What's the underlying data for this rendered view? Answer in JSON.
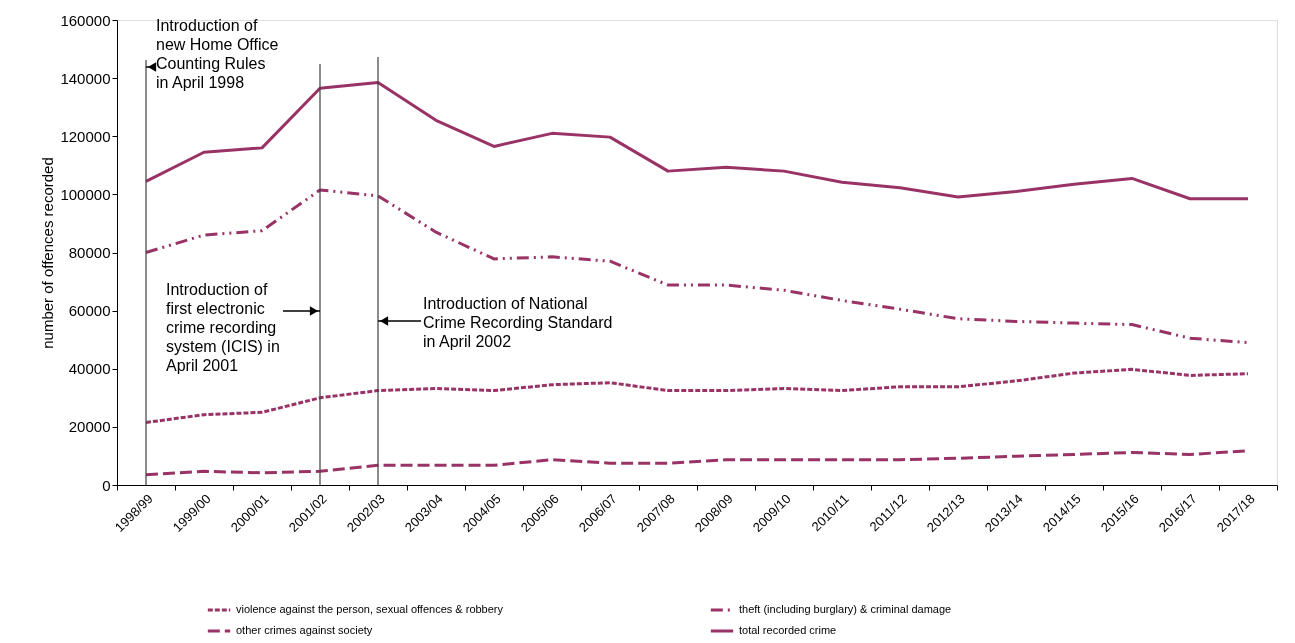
{
  "chart_data": {
    "type": "line",
    "ylabel": "number of offences recorded",
    "categories": [
      "1998/99",
      "1999/00",
      "2000/01",
      "2001/02",
      "2002/03",
      "2003/04",
      "2004/05",
      "2005/06",
      "2006/07",
      "2007/08",
      "2008/09",
      "2009/10",
      "2010/11",
      "2011/12",
      "2012/13",
      "2013/14",
      "2014/15",
      "2015/16",
      "2016/17",
      "2017/18"
    ],
    "series": [
      {
        "name": "violence against the person, sexual offences & robbery",
        "color": "#993366",
        "line_style": "dotted",
        "values": [
          21500,
          24200,
          25000,
          30000,
          32500,
          33200,
          32500,
          34500,
          35200,
          32500,
          32500,
          33200,
          32500,
          33800,
          33800,
          35800,
          38500,
          39800,
          37700,
          38300
        ]
      },
      {
        "name": "theft (including burglary) & criminal damage",
        "color": "#993366",
        "line_style": "dashdot",
        "values": [
          80000,
          86000,
          87500,
          101500,
          99500,
          87000,
          77800,
          78500,
          77000,
          68800,
          68800,
          67000,
          63500,
          60500,
          57200,
          56300,
          55700,
          55200,
          50500,
          49000
        ]
      },
      {
        "name": "other crimes against society",
        "color": "#993366",
        "line_style": "dashed",
        "values": [
          3500,
          4700,
          4200,
          4700,
          6800,
          6800,
          6800,
          8700,
          7500,
          7500,
          8700,
          8700,
          8700,
          8700,
          9200,
          9900,
          10500,
          11200,
          10500,
          11800
        ]
      },
      {
        "name": "total recorded crime",
        "color": "#993366",
        "line_style": "solid",
        "values": [
          104500,
          114500,
          116000,
          136500,
          138500,
          125500,
          116500,
          121000,
          119700,
          108000,
          109300,
          108000,
          104200,
          102300,
          99100,
          101000,
          103500,
          105500,
          98500,
          98500
        ]
      }
    ],
    "ylim": [
      0,
      160000
    ],
    "yticks": [
      0,
      20000,
      40000,
      60000,
      80000,
      100000,
      120000,
      140000,
      160000
    ],
    "ref_lines": [
      {
        "axis": "x",
        "value": "1998/99",
        "label": "Introduction of new Home Office Counting Rules in April 1998",
        "color": "#404040"
      },
      {
        "axis": "x",
        "value": "2001/02",
        "label": "Introduction of first electronic crime recording system (ICIS) in April 2001",
        "color": "#404040"
      },
      {
        "axis": "x",
        "value": "2002/03",
        "label": "Introduction of National Crime Recording Standard in April 2002",
        "color": "#404040"
      }
    ],
    "grid": false,
    "legend": "bottom",
    "marker": "none"
  }
}
